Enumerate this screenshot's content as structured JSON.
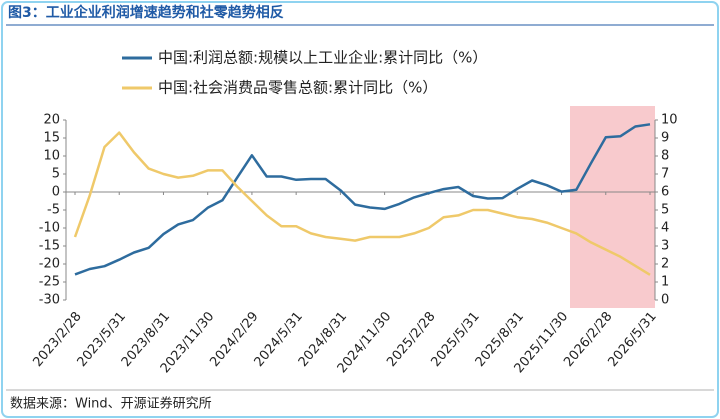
{
  "title": "图3：工业企业利润增速趋势和社零趋势相反",
  "source": "数据来源：Wind、开源证券研究所",
  "chart_data": {
    "type": "line",
    "categories": [
      "2023/2/28",
      null,
      null,
      "2023/5/31",
      null,
      null,
      "2023/8/31",
      null,
      null,
      "2023/11/30",
      null,
      null,
      "2024/2/29",
      null,
      null,
      "2024/5/31",
      null,
      null,
      "2024/8/31",
      null,
      null,
      "2024/11/30",
      null,
      null,
      "2025/2/28",
      null,
      null,
      "2025/5/31",
      null,
      null,
      "2025/8/31",
      null,
      null,
      "2025/11/30",
      null,
      null,
      "2026/2/28",
      null,
      null,
      "2026/5/31"
    ],
    "series": [
      {
        "name": "中国:利润总额:规模以上工业企业:累计同比（%）",
        "color": "#2e6c9e",
        "values": [
          -22.9,
          -21.4,
          -20.6,
          -18.8,
          -16.8,
          -15.5,
          -11.7,
          -9.0,
          -7.8,
          -4.4,
          -2.3,
          4.0,
          10.2,
          4.3,
          4.3,
          3.4,
          3.6,
          3.6,
          0.5,
          -3.5,
          -4.3,
          -4.7,
          -3.3,
          -1.5,
          -0.3,
          0.8,
          1.4,
          -1.1,
          -1.8,
          -1.7,
          0.9,
          3.2,
          1.9,
          0.1,
          0.6,
          8.0,
          15.2,
          15.5,
          18.2,
          18.8
        ]
      },
      {
        "name": "中国:社会消费品零售总额:累计同比（%）",
        "color": "#efc96a",
        "axis": "y2",
        "values": [
          3.5,
          5.8,
          8.5,
          9.3,
          8.2,
          7.3,
          7.0,
          6.8,
          6.9,
          7.2,
          7.2,
          6.3,
          5.5,
          4.7,
          4.1,
          4.1,
          3.7,
          3.5,
          3.4,
          3.3,
          3.5,
          3.5,
          3.5,
          3.7,
          4.0,
          4.6,
          4.7,
          5.0,
          5.0,
          4.8,
          4.6,
          4.5,
          4.3,
          4.0,
          3.7,
          3.2,
          2.8,
          2.4,
          1.9,
          1.4
        ]
      }
    ],
    "ylim": [
      -30,
      20
    ],
    "yticks": [
      -30,
      -25,
      -20,
      -15,
      -10,
      -5,
      0,
      5,
      10,
      15,
      20
    ],
    "y2lim": [
      0,
      10
    ],
    "y2ticks": [
      0,
      1,
      2,
      3,
      4,
      5,
      6,
      7,
      8,
      9,
      10
    ]
  }
}
